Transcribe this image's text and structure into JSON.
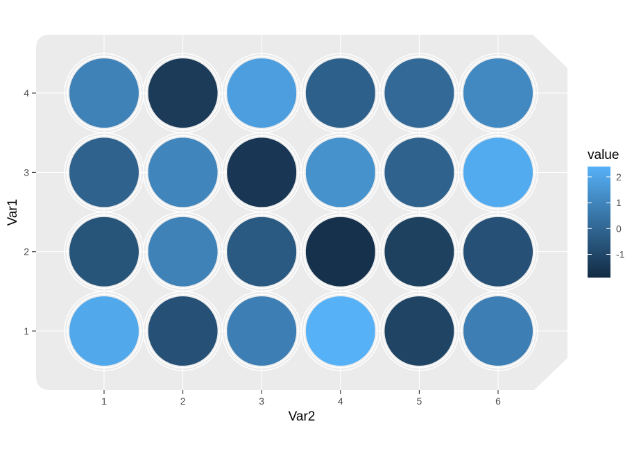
{
  "chart_data": {
    "type": "heatmap",
    "xlabel": "Var2",
    "ylabel": "Var1",
    "x_categories": [
      "1",
      "2",
      "3",
      "4",
      "5",
      "6"
    ],
    "y_categories": [
      "1",
      "2",
      "3",
      "4"
    ],
    "values": [
      [
        2.1,
        -0.7,
        0.8,
        2.4,
        -1.1,
        0.8
      ],
      [
        -0.6,
        0.9,
        -0.4,
        -1.7,
        -1.2,
        -0.7
      ],
      [
        -0.1,
        1.0,
        -1.5,
        1.4,
        -0.1,
        2.2
      ],
      [
        0.9,
        -1.4,
        1.8,
        -0.2,
        0.1,
        1.1
      ]
    ],
    "legend": {
      "title": "value",
      "ticks": [
        2,
        1,
        0,
        -1
      ],
      "tick_labels": [
        "2",
        "1",
        "0",
        "-1"
      ],
      "range": [
        -1.9,
        2.4
      ],
      "placement": "right"
    },
    "colors": {
      "low": "#132b43",
      "high": "#56b1f7",
      "panel": "#ebebeb",
      "grid": "#ffffff",
      "well_ring": "#ffffff"
    },
    "grid": true
  }
}
